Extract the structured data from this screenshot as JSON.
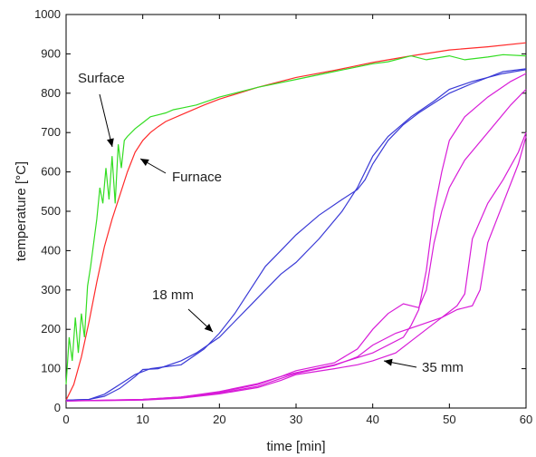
{
  "chart_data": {
    "type": "line",
    "xlabel": "time [min]",
    "ylabel": "temperature [°C]",
    "xlim": [
      0,
      60
    ],
    "ylim": [
      0,
      1000
    ],
    "xticks": [
      0,
      10,
      20,
      30,
      40,
      50,
      60
    ],
    "yticks": [
      0,
      100,
      200,
      300,
      400,
      500,
      600,
      700,
      800,
      900,
      1000
    ],
    "grid": false,
    "series": [
      {
        "name": "Furnace",
        "color": "#ff2a2a",
        "points": [
          [
            0,
            20
          ],
          [
            1,
            60
          ],
          [
            2,
            130
          ],
          [
            3,
            220
          ],
          [
            4,
            320
          ],
          [
            5,
            410
          ],
          [
            6,
            480
          ],
          [
            7,
            540
          ],
          [
            8,
            600
          ],
          [
            9,
            650
          ],
          [
            10,
            680
          ],
          [
            11,
            700
          ],
          [
            12,
            715
          ],
          [
            13,
            728
          ],
          [
            15,
            745
          ],
          [
            18,
            770
          ],
          [
            20,
            785
          ],
          [
            25,
            815
          ],
          [
            30,
            840
          ],
          [
            35,
            858
          ],
          [
            40,
            878
          ],
          [
            45,
            895
          ],
          [
            50,
            910
          ],
          [
            55,
            918
          ],
          [
            60,
            928
          ]
        ]
      },
      {
        "name": "Surface",
        "color": "#33dd22",
        "points": [
          [
            0,
            60
          ],
          [
            0.4,
            180
          ],
          [
            0.8,
            120
          ],
          [
            1.2,
            230
          ],
          [
            1.6,
            140
          ],
          [
            2,
            240
          ],
          [
            2.4,
            180
          ],
          [
            2.8,
            310
          ],
          [
            3.2,
            360
          ],
          [
            3.6,
            420
          ],
          [
            4,
            480
          ],
          [
            4.4,
            560
          ],
          [
            4.8,
            520
          ],
          [
            5.2,
            610
          ],
          [
            5.6,
            530
          ],
          [
            6,
            640
          ],
          [
            6.4,
            520
          ],
          [
            6.8,
            670
          ],
          [
            7.2,
            610
          ],
          [
            7.6,
            680
          ],
          [
            8,
            690
          ],
          [
            9,
            710
          ],
          [
            10,
            725
          ],
          [
            11,
            740
          ],
          [
            12,
            745
          ],
          [
            13,
            750
          ],
          [
            14,
            758
          ],
          [
            15,
            762
          ],
          [
            17,
            770
          ],
          [
            20,
            790
          ],
          [
            25,
            815
          ],
          [
            30,
            835
          ],
          [
            35,
            855
          ],
          [
            40,
            875
          ],
          [
            42,
            880
          ],
          [
            45,
            895
          ],
          [
            47,
            885
          ],
          [
            50,
            895
          ],
          [
            52,
            885
          ],
          [
            55,
            892
          ],
          [
            57,
            898
          ],
          [
            60,
            895
          ]
        ]
      },
      {
        "name": "18 mm a",
        "color": "#3a3ad6",
        "points": [
          [
            0,
            20
          ],
          [
            3,
            22
          ],
          [
            5,
            30
          ],
          [
            7,
            50
          ],
          [
            9,
            80
          ],
          [
            10,
            98
          ],
          [
            12,
            100
          ],
          [
            15,
            120
          ],
          [
            17,
            140
          ],
          [
            20,
            180
          ],
          [
            22,
            220
          ],
          [
            24,
            260
          ],
          [
            26,
            300
          ],
          [
            28,
            340
          ],
          [
            30,
            370
          ],
          [
            33,
            430
          ],
          [
            36,
            500
          ],
          [
            38,
            560
          ],
          [
            39,
            600
          ],
          [
            40,
            640
          ],
          [
            42,
            690
          ],
          [
            45,
            740
          ],
          [
            48,
            780
          ],
          [
            50,
            810
          ],
          [
            53,
            830
          ],
          [
            55,
            840
          ],
          [
            57,
            850
          ],
          [
            60,
            860
          ]
        ]
      },
      {
        "name": "18 mm b",
        "color": "#3a3ad6",
        "points": [
          [
            0,
            20
          ],
          [
            3,
            22
          ],
          [
            5,
            35
          ],
          [
            7,
            60
          ],
          [
            9,
            85
          ],
          [
            11,
            100
          ],
          [
            13,
            105
          ],
          [
            15,
            110
          ],
          [
            18,
            150
          ],
          [
            20,
            190
          ],
          [
            22,
            240
          ],
          [
            24,
            300
          ],
          [
            26,
            360
          ],
          [
            28,
            400
          ],
          [
            30,
            440
          ],
          [
            33,
            490
          ],
          [
            36,
            530
          ],
          [
            38,
            555
          ],
          [
            39,
            580
          ],
          [
            40,
            620
          ],
          [
            42,
            680
          ],
          [
            44,
            720
          ],
          [
            46,
            750
          ],
          [
            48,
            775
          ],
          [
            50,
            800
          ],
          [
            53,
            825
          ],
          [
            55,
            840
          ],
          [
            57,
            855
          ],
          [
            60,
            862
          ]
        ]
      },
      {
        "name": "35 mm a",
        "color": "#d81cd8",
        "points": [
          [
            0,
            18
          ],
          [
            10,
            22
          ],
          [
            15,
            28
          ],
          [
            20,
            40
          ],
          [
            25,
            60
          ],
          [
            28,
            80
          ],
          [
            30,
            90
          ],
          [
            35,
            110
          ],
          [
            40,
            140
          ],
          [
            44,
            180
          ],
          [
            45,
            210
          ],
          [
            46,
            250
          ],
          [
            47,
            350
          ],
          [
            48,
            500
          ],
          [
            49,
            600
          ],
          [
            50,
            680
          ],
          [
            52,
            740
          ],
          [
            55,
            790
          ],
          [
            58,
            830
          ],
          [
            60,
            850
          ]
        ]
      },
      {
        "name": "35 mm b",
        "color": "#d81cd8",
        "points": [
          [
            0,
            18
          ],
          [
            10,
            22
          ],
          [
            15,
            28
          ],
          [
            20,
            42
          ],
          [
            25,
            62
          ],
          [
            28,
            80
          ],
          [
            30,
            95
          ],
          [
            35,
            115
          ],
          [
            38,
            150
          ],
          [
            40,
            200
          ],
          [
            42,
            240
          ],
          [
            44,
            265
          ],
          [
            46,
            255
          ],
          [
            47,
            300
          ],
          [
            48,
            420
          ],
          [
            49,
            500
          ],
          [
            50,
            560
          ],
          [
            52,
            630
          ],
          [
            55,
            700
          ],
          [
            58,
            770
          ],
          [
            60,
            810
          ]
        ]
      },
      {
        "name": "35 mm c",
        "color": "#d81cd8",
        "points": [
          [
            0,
            18
          ],
          [
            10,
            21
          ],
          [
            15,
            26
          ],
          [
            20,
            38
          ],
          [
            25,
            55
          ],
          [
            28,
            75
          ],
          [
            30,
            88
          ],
          [
            35,
            108
          ],
          [
            38,
            130
          ],
          [
            40,
            160
          ],
          [
            43,
            190
          ],
          [
            46,
            210
          ],
          [
            49,
            230
          ],
          [
            51,
            260
          ],
          [
            52,
            290
          ],
          [
            53,
            430
          ],
          [
            55,
            520
          ],
          [
            57,
            580
          ],
          [
            59,
            650
          ],
          [
            60,
            700
          ]
        ]
      },
      {
        "name": "35 mm d",
        "color": "#d81cd8",
        "points": [
          [
            0,
            18
          ],
          [
            10,
            20
          ],
          [
            15,
            25
          ],
          [
            20,
            36
          ],
          [
            25,
            52
          ],
          [
            28,
            70
          ],
          [
            30,
            85
          ],
          [
            35,
            100
          ],
          [
            38,
            110
          ],
          [
            40,
            120
          ],
          [
            43,
            140
          ],
          [
            45,
            170
          ],
          [
            47,
            200
          ],
          [
            49,
            230
          ],
          [
            51,
            250
          ],
          [
            53,
            260
          ],
          [
            54,
            300
          ],
          [
            55,
            420
          ],
          [
            57,
            520
          ],
          [
            59,
            620
          ],
          [
            60,
            690
          ]
        ]
      }
    ],
    "annotations": [
      {
        "text": "Surface",
        "data_x": 6,
        "data_y": 650
      },
      {
        "text": "Furnace",
        "data_x": 10.5,
        "data_y": 640
      },
      {
        "text": "18 mm",
        "data_x": 19,
        "data_y": 190
      },
      {
        "text": "35 mm",
        "data_x": 41,
        "data_y": 110
      }
    ]
  }
}
